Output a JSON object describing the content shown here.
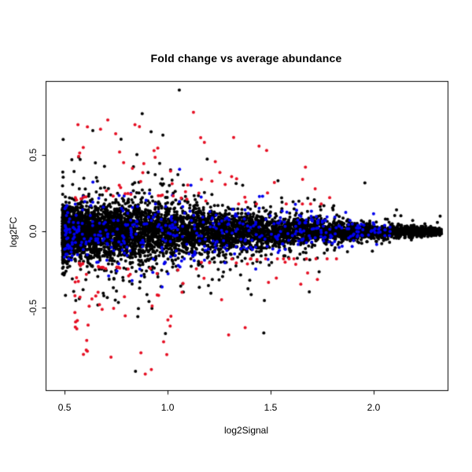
{
  "figure": {
    "background_color": "#ffffff",
    "plot_border_color": "#000000"
  },
  "chart_data": {
    "type": "scatter",
    "title": "Fold change vs average abundance",
    "xlabel": "log2Signal",
    "ylabel": "log2FC",
    "xlim": [
      0.408,
      2.359
    ],
    "ylim": [
      -1.04,
      0.985
    ],
    "xticks": {
      "values": [
        0.5,
        1.0,
        1.5,
        2.0
      ],
      "labels": [
        "0.5",
        "1.0",
        "1.5",
        "2.0"
      ]
    },
    "yticks": {
      "values": [
        0.5,
        0.0,
        -0.5
      ],
      "labels": [
        "0.5",
        "0.0",
        "-0.5"
      ]
    },
    "grid": false,
    "legend": "none",
    "marker": {
      "shape": "filled-circle",
      "radius_px": 2
    },
    "description": "MA-style plot: dense black funnel-shaped cloud of points centred on log2FC=0, widest near log2Signal 0.8-1.0 and converging to 0 spread near log2Signal 2.3. Blue points lie along the fringes of the cloud; red points are high-fold-change outliers reaching about +/-0.95.",
    "funnel_sd_by_x": [
      [
        0.49,
        0.075
      ],
      [
        0.85,
        0.095
      ],
      [
        1.2,
        0.075
      ],
      [
        1.5,
        0.055
      ],
      [
        1.8,
        0.035
      ],
      [
        2.1,
        0.018
      ],
      [
        2.36,
        0.012
      ]
    ],
    "seed": 1234567,
    "series": [
      {
        "name": "all-probes",
        "color": "#000000",
        "n": 6500,
        "x_min": 0.49,
        "x_span": 1.84,
        "x_pow": 1.7,
        "outlier_frac": 0.1,
        "outlier_mult": 2.2,
        "extreme_frac": 0.015,
        "extreme_mult": 4.5,
        "y_clamp": 0.96
      },
      {
        "name": "highlighted-control-probes",
        "color": "#0000ee",
        "n": 450,
        "x_min": 0.5,
        "x_span": 1.58,
        "x_pow": 1.35,
        "sd_mult": 1.55,
        "y_clamp": 0.48
      },
      {
        "name": "significant-outlier-probes",
        "color": "#e60f23",
        "n": 158,
        "x_min": 0.55,
        "x_span": 1.3,
        "x_pow": 1.6,
        "mag_base": 2.6,
        "mag_extra": 7.5,
        "mag_pow": 2.2,
        "mag_min": 0.18,
        "y_clamp": 0.95,
        "pos_frac": 0.52
      }
    ]
  }
}
